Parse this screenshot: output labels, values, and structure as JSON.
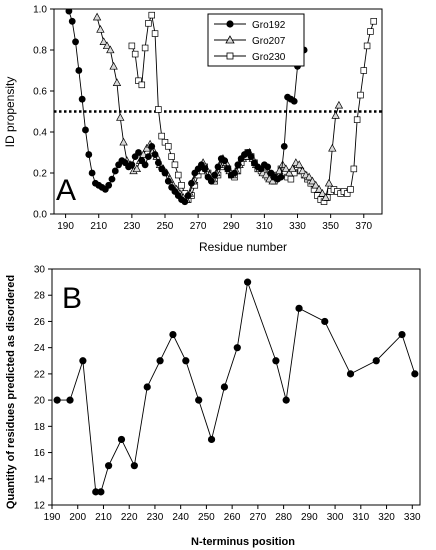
{
  "chart_data": [
    {
      "type": "line",
      "panel_label": "A",
      "xlabel": "Residue number",
      "ylabel": "ID propensity",
      "xlim": [
        183,
        381
      ],
      "ylim": [
        0,
        1.0
      ],
      "x_ticks": [
        190,
        210,
        230,
        250,
        270,
        290,
        310,
        330,
        350,
        370
      ],
      "y_ticks": [
        "0.0",
        "0.2",
        "0.4",
        "0.6",
        "0.8",
        "1.0"
      ],
      "threshold": 0.5,
      "legend_position": "top-center",
      "series": [
        {
          "name": "Gro192",
          "marker": "filled-circle",
          "x": [
            192,
            194,
            196,
            198,
            200,
            202,
            204,
            206,
            208,
            210,
            212,
            214,
            216,
            218,
            220,
            222,
            224,
            226,
            228,
            230,
            232,
            234,
            236,
            238,
            240,
            242,
            244,
            246,
            248,
            250,
            252,
            254,
            256,
            258,
            260,
            262,
            264,
            266,
            268,
            270,
            272,
            274,
            276,
            278,
            280,
            282,
            284,
            286,
            288,
            290,
            292,
            294,
            296,
            298,
            300,
            302,
            304,
            306,
            308,
            310,
            312,
            314,
            316,
            318,
            320,
            322,
            324,
            326,
            328,
            330,
            332,
            334
          ],
          "y": [
            0.99,
            0.94,
            0.84,
            0.7,
            0.56,
            0.41,
            0.29,
            0.2,
            0.15,
            0.14,
            0.13,
            0.12,
            0.14,
            0.17,
            0.21,
            0.24,
            0.26,
            0.25,
            0.23,
            0.24,
            0.28,
            0.3,
            0.26,
            0.24,
            0.28,
            0.33,
            0.29,
            0.25,
            0.22,
            0.2,
            0.16,
            0.13,
            0.11,
            0.09,
            0.07,
            0.06,
            0.09,
            0.15,
            0.2,
            0.22,
            0.24,
            0.22,
            0.18,
            0.16,
            0.19,
            0.23,
            0.27,
            0.26,
            0.22,
            0.19,
            0.2,
            0.24,
            0.27,
            0.29,
            0.3,
            0.28,
            0.25,
            0.23,
            0.22,
            0.24,
            0.23,
            0.2,
            0.18,
            0.17,
            0.18,
            0.33,
            0.57,
            0.56,
            0.55,
            0.72,
            0.78,
            0.8
          ]
        },
        {
          "name": "Gro207",
          "marker": "open-triangle",
          "x": [
            209,
            211,
            213,
            215,
            217,
            219,
            221,
            223,
            225,
            227,
            229,
            231,
            233,
            235,
            237,
            239,
            241,
            243,
            245,
            247,
            249,
            251,
            253,
            255,
            257,
            259,
            261,
            263,
            265,
            267,
            269,
            271,
            273,
            275,
            277,
            279,
            281,
            283,
            285,
            287,
            289,
            291,
            293,
            295,
            297,
            299,
            301,
            303,
            305,
            307,
            309,
            311,
            313,
            315,
            317,
            319,
            321,
            323,
            325,
            327,
            329,
            331,
            333,
            335,
            337,
            339,
            341,
            343,
            345,
            347,
            349,
            351,
            353,
            355
          ],
          "y": [
            0.96,
            0.9,
            0.84,
            0.82,
            0.8,
            0.72,
            0.64,
            0.47,
            0.35,
            0.26,
            0.24,
            0.21,
            0.22,
            0.26,
            0.29,
            0.32,
            0.34,
            0.31,
            0.28,
            0.24,
            0.22,
            0.2,
            0.17,
            0.14,
            0.12,
            0.1,
            0.08,
            0.07,
            0.1,
            0.16,
            0.21,
            0.23,
            0.25,
            0.22,
            0.19,
            0.17,
            0.2,
            0.24,
            0.27,
            0.25,
            0.21,
            0.19,
            0.21,
            0.24,
            0.27,
            0.28,
            0.3,
            0.27,
            0.24,
            0.22,
            0.2,
            0.19,
            0.17,
            0.16,
            0.18,
            0.21,
            0.24,
            0.22,
            0.2,
            0.22,
            0.25,
            0.24,
            0.21,
            0.19,
            0.18,
            0.16,
            0.14,
            0.12,
            0.1,
            0.08,
            0.15,
            0.32,
            0.48,
            0.53
          ]
        },
        {
          "name": "Gro230",
          "marker": "open-square",
          "x": [
            230,
            232,
            234,
            236,
            238,
            240,
            242,
            244,
            246,
            248,
            250,
            252,
            254,
            256,
            258,
            260,
            262,
            264,
            266,
            268,
            270,
            272,
            274,
            276,
            278,
            280,
            282,
            284,
            286,
            288,
            290,
            292,
            294,
            296,
            298,
            300,
            302,
            304,
            306,
            308,
            310,
            312,
            314,
            316,
            318,
            320,
            322,
            324,
            326,
            328,
            330,
            332,
            334,
            336,
            338,
            340,
            342,
            344,
            346,
            348,
            350,
            352,
            354,
            356,
            358,
            360,
            362,
            364,
            366,
            368,
            370,
            372,
            374,
            376
          ],
          "y": [
            0.82,
            0.78,
            0.65,
            0.63,
            0.81,
            0.93,
            0.97,
            0.88,
            0.51,
            0.38,
            0.35,
            0.33,
            0.28,
            0.24,
            0.19,
            0.14,
            0.1,
            0.07,
            0.09,
            0.14,
            0.19,
            0.21,
            0.23,
            0.2,
            0.17,
            0.16,
            0.19,
            0.23,
            0.25,
            0.22,
            0.19,
            0.18,
            0.21,
            0.25,
            0.28,
            0.3,
            0.28,
            0.25,
            0.22,
            0.21,
            0.2,
            0.18,
            0.17,
            0.16,
            0.19,
            0.22,
            0.2,
            0.18,
            0.17,
            0.2,
            0.23,
            0.21,
            0.19,
            0.17,
            0.15,
            0.12,
            0.09,
            0.07,
            0.06,
            0.08,
            0.11,
            0.12,
            0.11,
            0.1,
            0.11,
            0.1,
            0.12,
            0.22,
            0.46,
            0.58,
            0.7,
            0.82,
            0.89,
            0.94
          ]
        }
      ]
    },
    {
      "type": "line",
      "panel_label": "B",
      "xlabel": "N-terminus position",
      "ylabel": "Quantity of residues predicted as disordered",
      "xlim": [
        190,
        333
      ],
      "ylim": [
        12,
        30
      ],
      "x_ticks": [
        190,
        200,
        210,
        220,
        230,
        240,
        250,
        260,
        270,
        280,
        290,
        300,
        310,
        320,
        330
      ],
      "y_ticks": [
        12,
        14,
        16,
        18,
        20,
        22,
        24,
        26,
        28,
        30
      ],
      "series": [
        {
          "marker": "filled-circle",
          "x": [
            192,
            197,
            202,
            207,
            209,
            212,
            217,
            222,
            227,
            232,
            237,
            242,
            247,
            252,
            257,
            262,
            266,
            277,
            281,
            286,
            296,
            306,
            316,
            326,
            331
          ],
          "y": [
            20,
            20,
            23,
            13,
            13,
            15,
            17,
            15,
            21,
            23,
            25,
            23,
            20,
            17,
            21,
            24,
            29,
            23,
            20,
            27,
            26,
            22,
            23,
            25,
            22
          ]
        }
      ]
    }
  ]
}
